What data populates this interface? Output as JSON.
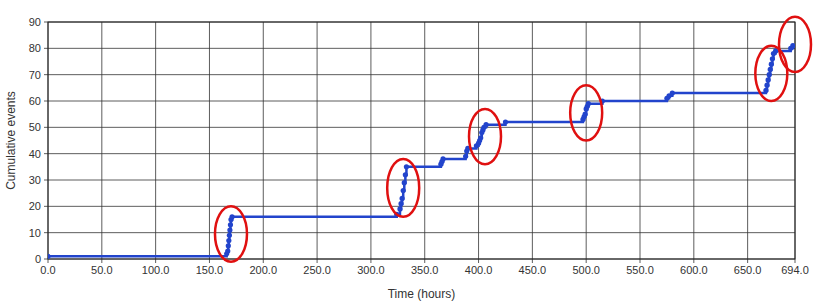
{
  "chart_data": {
    "type": "line",
    "x_label": "Time (hours)",
    "y_label": "Cumulative events",
    "x": [
      0,
      166,
      167,
      167.5,
      168,
      168.5,
      169,
      169.5,
      170,
      171,
      324,
      327,
      328,
      329,
      330,
      331,
      332,
      333,
      365,
      366,
      367,
      388,
      389,
      390,
      398,
      400,
      401,
      402,
      403,
      404,
      405,
      407,
      425,
      497,
      498,
      499,
      500,
      501,
      502,
      515,
      575,
      577,
      580,
      667,
      668,
      669,
      670,
      671,
      672,
      673,
      674,
      676,
      690,
      692
    ],
    "values": [
      1,
      2,
      3,
      5,
      7,
      9,
      11,
      13,
      15,
      16,
      17,
      19,
      21,
      23,
      26,
      29,
      32,
      35,
      36,
      37,
      38,
      39,
      41,
      42,
      43,
      44,
      45,
      46,
      48,
      49,
      50,
      51,
      52,
      53,
      54,
      55,
      57,
      58,
      59,
      60,
      61,
      62,
      63,
      64,
      66,
      68,
      70,
      72,
      74,
      76,
      78,
      79,
      80,
      81
    ],
    "color": "#2244cc",
    "marker": "circle",
    "line_style": "step",
    "xlim": [
      0,
      694
    ],
    "ylim": [
      0,
      90
    ],
    "xticks": [
      {
        "value": 0,
        "label": "0.0"
      },
      {
        "value": 50,
        "label": "50.0"
      },
      {
        "value": 100,
        "label": "100.0"
      },
      {
        "value": 150,
        "label": "150.0"
      },
      {
        "value": 200,
        "label": "200.0"
      },
      {
        "value": 250,
        "label": "250.0"
      },
      {
        "value": 300,
        "label": "300.0"
      },
      {
        "value": 350,
        "label": "350.0"
      },
      {
        "value": 400,
        "label": "400.0"
      },
      {
        "value": 450,
        "label": "450.0"
      },
      {
        "value": 500,
        "label": "500.0"
      },
      {
        "value": 550,
        "label": "550.0"
      },
      {
        "value": 600,
        "label": "600.0"
      },
      {
        "value": 650,
        "label": "650.0"
      },
      {
        "value": 694,
        "label": "694.0"
      }
    ],
    "yticks": [
      0,
      10,
      20,
      30,
      40,
      50,
      60,
      70,
      80,
      90
    ],
    "grid": true,
    "highlights": [
      {
        "x": 170,
        "y": [
          -1,
          20
        ],
        "color": "#e01010"
      },
      {
        "x": 330,
        "y": [
          16,
          38
        ],
        "color": "#e01010"
      },
      {
        "x": 406,
        "y": [
          36,
          57
        ],
        "color": "#e01010"
      },
      {
        "x": 500,
        "y": [
          45,
          66
        ],
        "color": "#e01010"
      },
      {
        "x": 672,
        "y": [
          60,
          81
        ],
        "color": "#e01010"
      },
      {
        "x": 694,
        "y": [
          71,
          92
        ],
        "color": "#e01010"
      }
    ]
  }
}
